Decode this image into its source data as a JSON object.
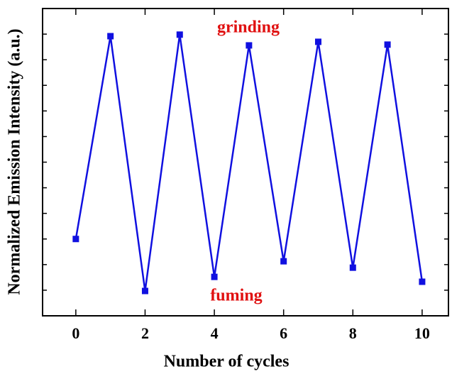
{
  "chart_data": {
    "type": "line",
    "xlabel": "Number of cycles",
    "ylabel": "Normalized Emission Intensity (a.u.)",
    "annotations": [
      "grinding",
      "fuming"
    ],
    "x": [
      0,
      1,
      2,
      3,
      4,
      5,
      6,
      7,
      8,
      9,
      10
    ],
    "series": [
      {
        "color": "#1010e0",
        "values": [
          3.0,
          10.92,
          0.97,
          10.98,
          1.52,
          10.56,
          2.13,
          10.7,
          1.88,
          10.59,
          1.33
        ]
      }
    ],
    "annotation_color": "#e01010",
    "xlim": [
      -0.96,
      10.76
    ],
    "xticks": [
      0,
      2,
      4,
      6,
      8,
      10
    ],
    "ylim": [
      0,
      12
    ],
    "yticks": [
      1,
      2,
      3,
      4,
      5,
      6,
      7,
      8,
      9,
      10,
      11
    ]
  }
}
